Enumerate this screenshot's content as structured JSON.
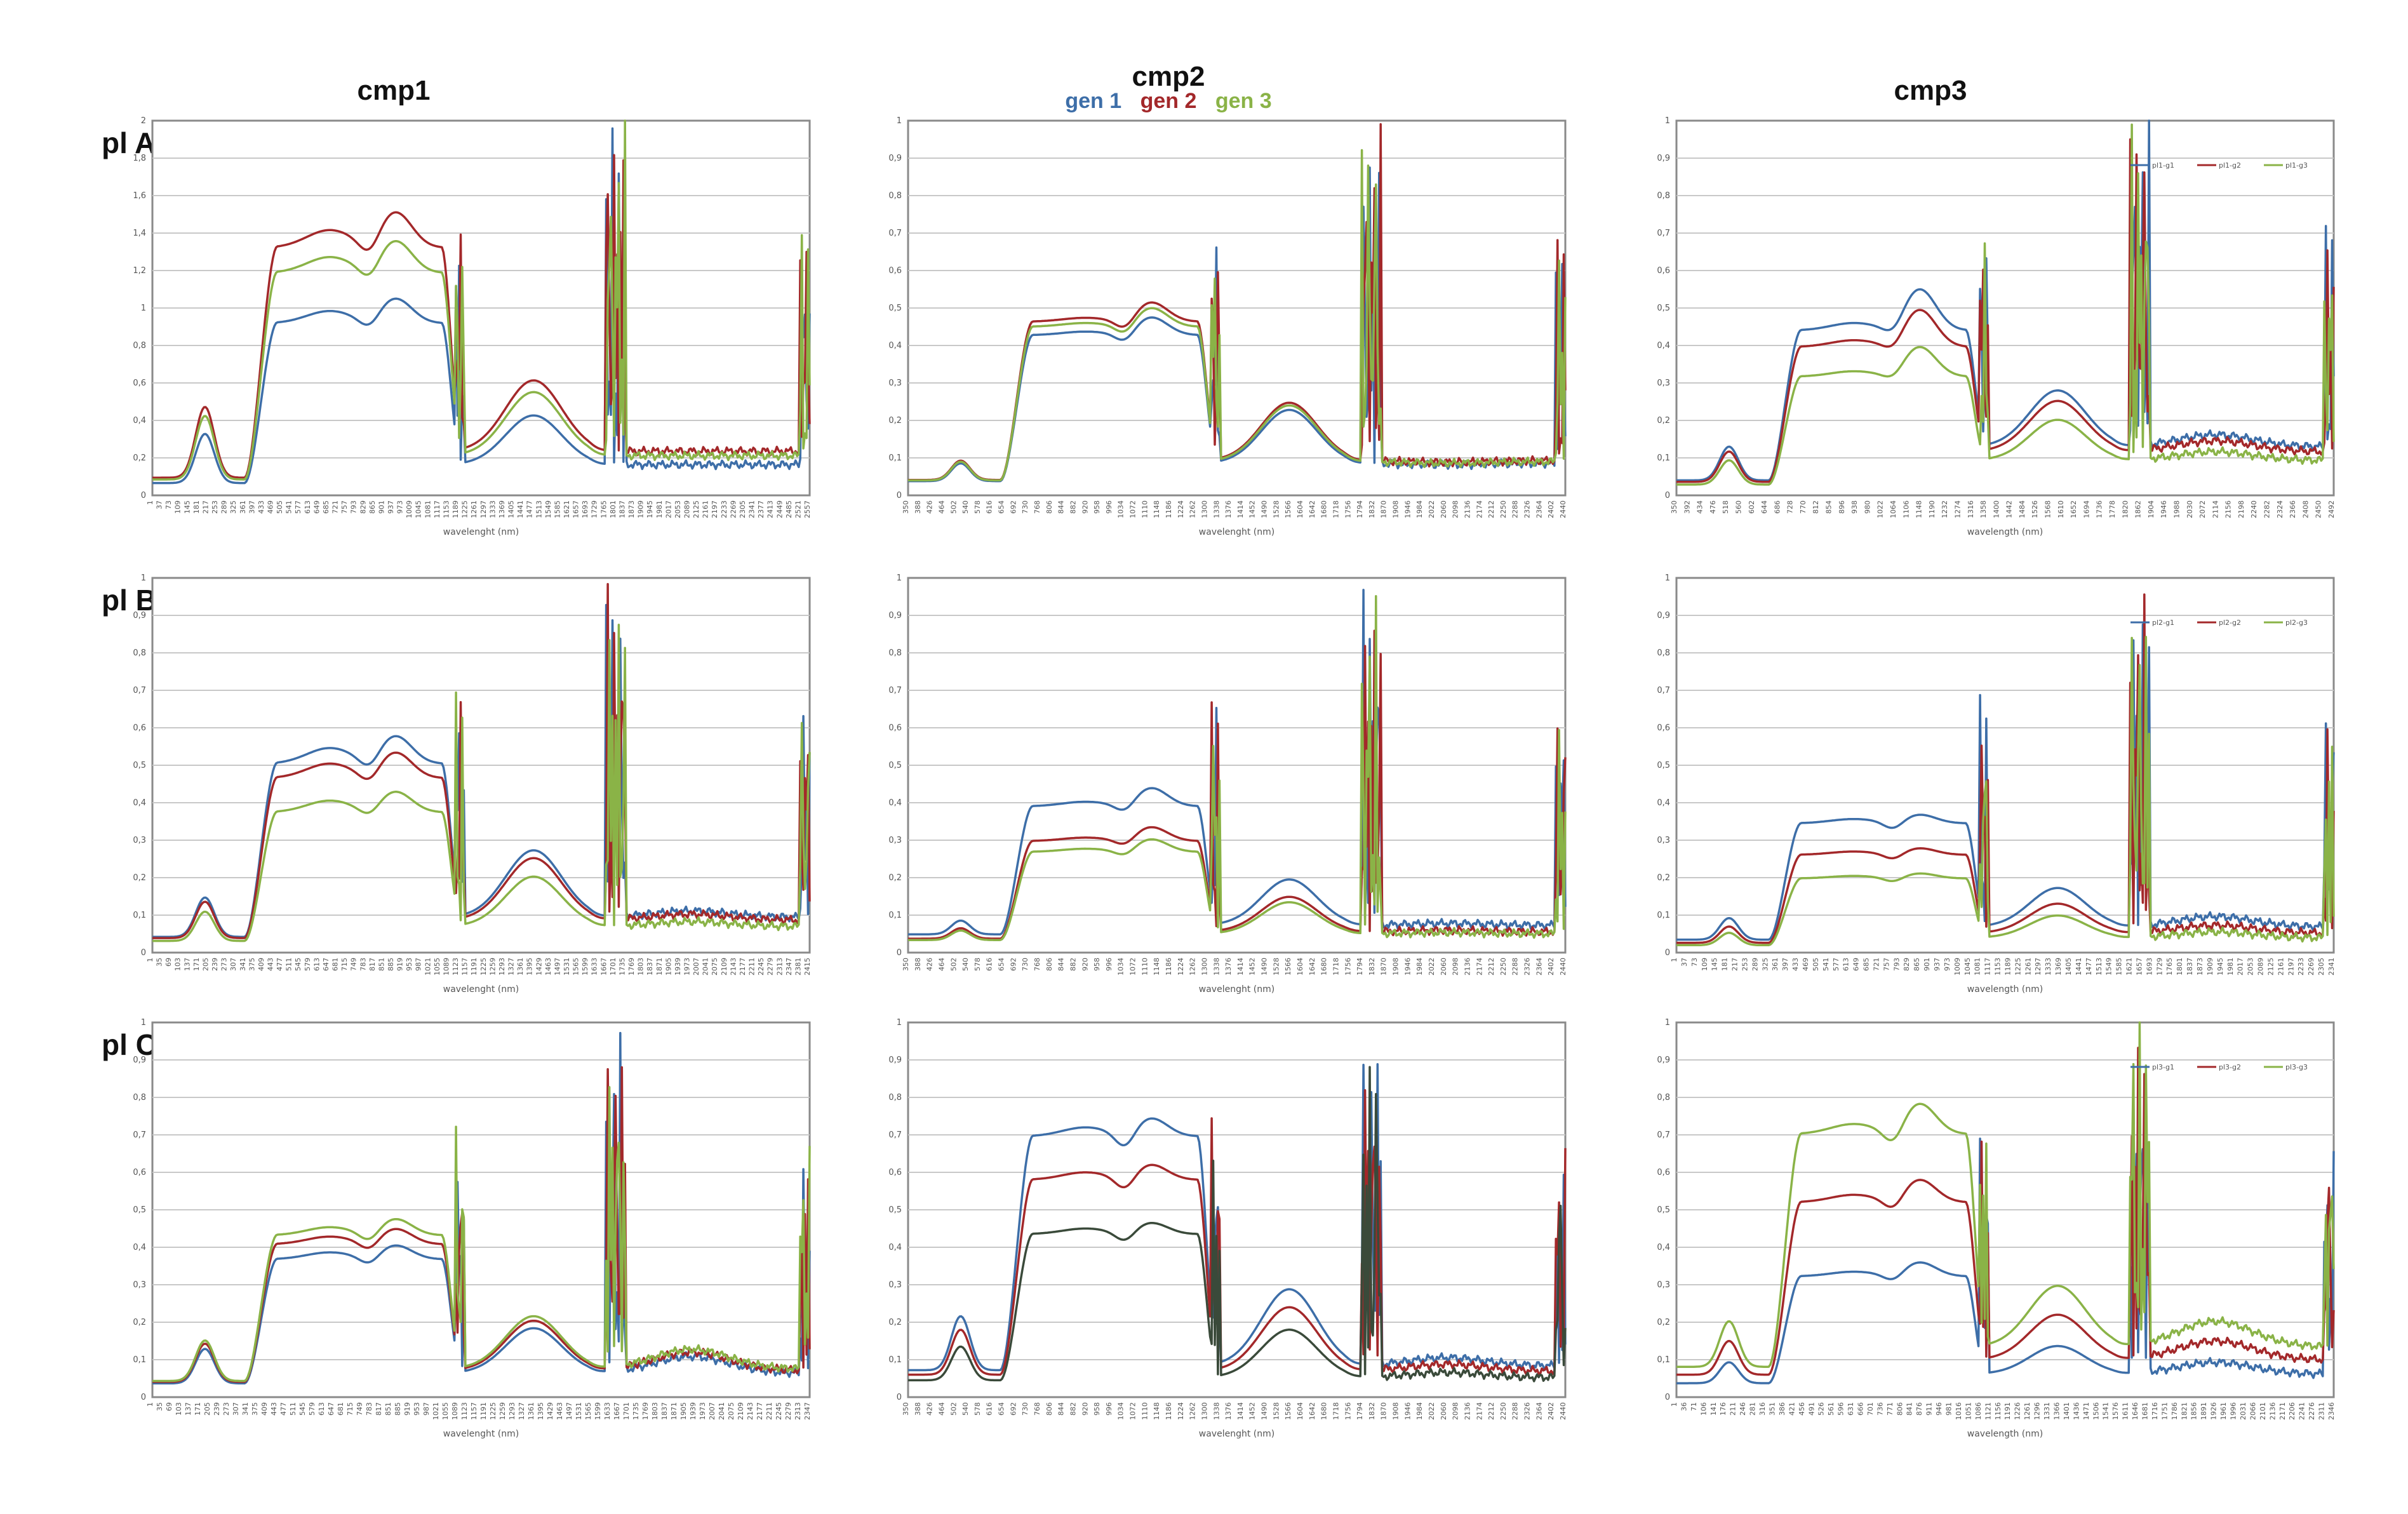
{
  "header": {
    "columns": [
      "cmp1",
      "cmp2",
      "cmp3"
    ],
    "legend": [
      {
        "label": "gen 1",
        "color": "#3d6ea8"
      },
      {
        "label": "gen 2",
        "color": "#a3282a"
      },
      {
        "label": "gen 3",
        "color": "#8ab347"
      }
    ]
  },
  "chart_data": [
    {
      "type": "line",
      "panel_id": "p1",
      "row": 0,
      "col": 0,
      "row_label": "pl A",
      "xlabel": "wavelenght (nm)",
      "ylim": [
        0,
        2
      ],
      "yticks": [
        "0",
        "0,2",
        "0,4",
        "0,6",
        "0,8",
        "1",
        "1,2",
        "1,4",
        "1,6",
        "1,8",
        "2"
      ],
      "x_start": 1,
      "x_step": 36,
      "x_count": 72,
      "curve": {
        "c0": 0.08,
        "bump": 0.4,
        "plat": 1.12,
        "peak1": 1.2,
        "peak2": 1.28,
        "mid": 0.52,
        "low": 0.2,
        "tail": 0.12
      },
      "series": [
        {
          "name": "gen1",
          "scale": 0.82
        },
        {
          "name": "gen2",
          "scale": 1.18
        },
        {
          "name": "gen3",
          "scale": 1.06
        }
      ]
    },
    {
      "type": "line",
      "panel_id": "p2",
      "row": 0,
      "col": 1,
      "row_label": "",
      "xlabel": "wavelenght (nm)",
      "ylim": [
        0,
        1
      ],
      "yticks": [
        "0",
        "0,1",
        "0,2",
        "0,3",
        "0,4",
        "0,5",
        "0,6",
        "0,7",
        "0,8",
        "0,9",
        "1"
      ],
      "x_start": 350,
      "x_step": 38,
      "x_count": 56,
      "curve": {
        "c0": 0.04,
        "bump": 0.09,
        "plat": 0.45,
        "peak1": 0.46,
        "peak2": 0.5,
        "mid": 0.24,
        "low": 0.09,
        "tail": 0.05
      },
      "series": [
        {
          "name": "gen1",
          "scale": 0.95
        },
        {
          "name": "gen2",
          "scale": 1.03
        },
        {
          "name": "gen3",
          "scale": 1.0
        }
      ]
    },
    {
      "type": "line",
      "panel_id": "p3",
      "row": 0,
      "col": 2,
      "row_label": "",
      "xlabel": "wavelength (nm)",
      "ylim": [
        0,
        1
      ],
      "yticks": [
        "0",
        "0,1",
        "0,2",
        "0,3",
        "0,4",
        "0,5",
        "0,6",
        "0,7",
        "0,8",
        "0,9",
        "1"
      ],
      "x_start": 350,
      "x_step": 42,
      "x_count": 52,
      "legend": [
        "pl1-g1",
        "pl1-g2",
        "pl1-g3"
      ],
      "curve": {
        "c0": 0.04,
        "bump": 0.13,
        "plat": 0.44,
        "peak1": 0.46,
        "peak2": 0.55,
        "mid": 0.28,
        "low": 0.13,
        "tail": 0.11
      },
      "series": [
        {
          "name": "gen1",
          "scale": 1.0
        },
        {
          "name": "gen2",
          "scale": 0.9
        },
        {
          "name": "gen3",
          "scale": 0.72
        }
      ]
    },
    {
      "type": "line",
      "panel_id": "p4",
      "row": 1,
      "col": 0,
      "row_label": "pl B",
      "xlabel": "wavelenght (nm)",
      "ylim": [
        0,
        1
      ],
      "yticks": [
        "0",
        "0,1",
        "0,2",
        "0,3",
        "0,4",
        "0,5",
        "0,6",
        "0,7",
        "0,8",
        "0,9",
        "1"
      ],
      "x_start": 1,
      "x_step": 34,
      "x_count": 72,
      "curve": {
        "c0": 0.04,
        "bump": 0.14,
        "plat": 0.48,
        "peak1": 0.52,
        "peak2": 0.55,
        "mid": 0.26,
        "low": 0.09,
        "tail": 0.07
      },
      "series": [
        {
          "name": "gen1",
          "scale": 1.05
        },
        {
          "name": "gen2",
          "scale": 0.97
        },
        {
          "name": "gen3",
          "scale": 0.78
        }
      ]
    },
    {
      "type": "line",
      "panel_id": "p5",
      "row": 1,
      "col": 1,
      "row_label": "",
      "xlabel": "wavelenght (nm)",
      "ylim": [
        0,
        1
      ],
      "yticks": [
        "0",
        "0,1",
        "0,2",
        "0,3",
        "0,4",
        "0,5",
        "0,6",
        "0,7",
        "0,8",
        "0,9",
        "1"
      ],
      "x_start": 350,
      "x_step": 38,
      "x_count": 56,
      "curve": {
        "c0": 0.04,
        "bump": 0.07,
        "plat": 0.32,
        "peak1": 0.33,
        "peak2": 0.36,
        "mid": 0.16,
        "low": 0.06,
        "tail": 0.04
      },
      "series": [
        {
          "name": "gen1",
          "scale": 1.22
        },
        {
          "name": "gen2",
          "scale": 0.93
        },
        {
          "name": "gen3",
          "scale": 0.84
        }
      ]
    },
    {
      "type": "line",
      "panel_id": "p6",
      "row": 1,
      "col": 2,
      "row_label": "",
      "xlabel": "wavelength (nm)",
      "ylim": [
        0,
        1
      ],
      "yticks": [
        "0",
        "0,1",
        "0,2",
        "0,3",
        "0,4",
        "0,5",
        "0,6",
        "0,7",
        "0,8",
        "0,9",
        "1"
      ],
      "x_start": 1,
      "x_step": 36,
      "x_count": 66,
      "legend": [
        "pl2-g1",
        "pl2-g2",
        "pl2-g3"
      ],
      "curve": {
        "c0": 0.03,
        "bump": 0.08,
        "plat": 0.3,
        "peak1": 0.31,
        "peak2": 0.32,
        "mid": 0.15,
        "low": 0.06,
        "tail": 0.06
      },
      "series": [
        {
          "name": "gen1",
          "scale": 1.15
        },
        {
          "name": "gen2",
          "scale": 0.87
        },
        {
          "name": "gen3",
          "scale": 0.66
        }
      ]
    },
    {
      "type": "line",
      "panel_id": "p7",
      "row": 2,
      "col": 0,
      "row_label": "pl C",
      "xlabel": "wavelenght (nm)",
      "ylim": [
        0,
        1
      ],
      "yticks": [
        "0",
        "0,1",
        "0,2",
        "0,3",
        "0,4",
        "0,5",
        "0,6",
        "0,7",
        "0,8",
        "0,9",
        "1"
      ],
      "x_start": 1,
      "x_step": 34,
      "x_count": 70,
      "curve": {
        "c0": 0.04,
        "bump": 0.14,
        "plat": 0.4,
        "peak1": 0.42,
        "peak2": 0.44,
        "mid": 0.2,
        "low": 0.07,
        "tail": 0.09
      },
      "series": [
        {
          "name": "gen1",
          "scale": 0.92
        },
        {
          "name": "gen2",
          "scale": 1.02
        },
        {
          "name": "gen3",
          "scale": 1.08
        }
      ]
    },
    {
      "type": "line",
      "panel_id": "p8",
      "row": 2,
      "col": 1,
      "row_label": "",
      "xlabel": "wavelenght (nm)",
      "ylim": [
        0,
        1
      ],
      "yticks": [
        "0",
        "0,1",
        "0,2",
        "0,3",
        "0,4",
        "0,5",
        "0,6",
        "0,7",
        "0,8",
        "0,9",
        "1"
      ],
      "x_start": 350,
      "x_step": 38,
      "x_count": 56,
      "curve": {
        "c0": 0.06,
        "bump": 0.18,
        "plat": 0.58,
        "peak1": 0.6,
        "peak2": 0.62,
        "mid": 0.24,
        "low": 0.07,
        "tail": 0.06
      },
      "series": [
        {
          "name": "gen1",
          "scale": 1.2
        },
        {
          "name": "gen2",
          "scale": 1.0
        },
        {
          "name": "gen3",
          "scale": 0.75,
          "color": "#3a4a3a"
        }
      ]
    },
    {
      "type": "line",
      "panel_id": "p9",
      "row": 2,
      "col": 2,
      "row_label": "",
      "xlabel": "wavelength (nm)",
      "ylim": [
        0,
        1
      ],
      "yticks": [
        "0",
        "0,1",
        "0,2",
        "0,3",
        "0,4",
        "0,5",
        "0,6",
        "0,7",
        "0,8",
        "0,9",
        "1"
      ],
      "x_start": 1,
      "x_step": 35,
      "x_count": 68,
      "legend": [
        "pl3-g1",
        "pl3-g2",
        "pl3-g3"
      ],
      "curve": {
        "c0": 0.06,
        "bump": 0.15,
        "plat": 0.52,
        "peak1": 0.54,
        "peak2": 0.58,
        "mid": 0.22,
        "low": 0.1,
        "tail": 0.11
      },
      "series": [
        {
          "name": "gen1",
          "scale": 0.62
        },
        {
          "name": "gen2",
          "scale": 1.0
        },
        {
          "name": "gen3",
          "scale": 1.35
        }
      ]
    }
  ]
}
